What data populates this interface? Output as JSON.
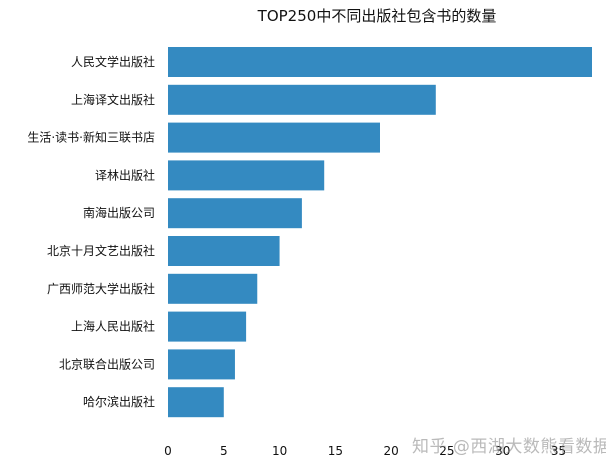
{
  "chart_data": {
    "type": "bar",
    "orientation": "horizontal",
    "title": "TOP250中不同出版社包含书的数量",
    "xlabel": "",
    "ylabel": "",
    "categories": [
      "人民文学出版社",
      "上海译文出版社",
      "生活·读书·新知三联书店",
      "译林出版社",
      "南海出版公司",
      "北京十月文艺出版社",
      "广西师范大学出版社",
      "上海人民出版社",
      "北京联合出版公司",
      "哈尔滨出版社"
    ],
    "values": [
      38,
      24,
      19,
      14,
      12,
      10,
      8,
      7,
      6,
      5
    ],
    "xlim": [
      0,
      38
    ],
    "xticks": [
      0,
      5,
      10,
      15,
      20,
      25,
      30,
      35
    ],
    "grid": false,
    "bar_color": "#348ac1"
  },
  "watermark": "知乎 @西湖大数熊看数据"
}
